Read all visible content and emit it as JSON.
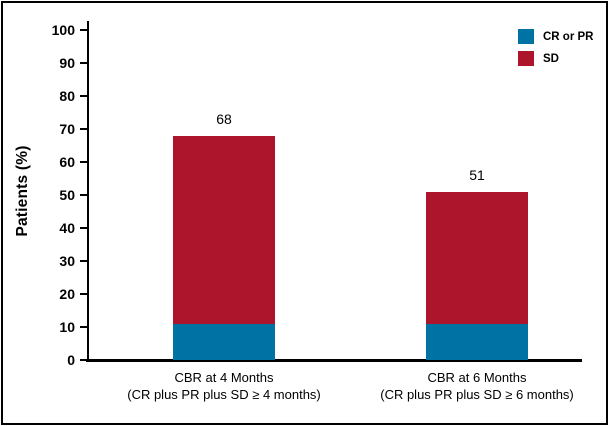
{
  "figure": {
    "frame_border_color": "#000000",
    "background": "#ffffff"
  },
  "chart_data": {
    "type": "bar",
    "stacked": true,
    "title": "",
    "xlabel": "",
    "ylabel": "Patients (%)",
    "ylim": [
      0,
      100
    ],
    "yticks": [
      0,
      10,
      20,
      30,
      40,
      50,
      60,
      70,
      80,
      90,
      100
    ],
    "grid": false,
    "legend_position": "top-right",
    "categories": [
      {
        "line1": "CBR at 4 Months",
        "line2": "(CR plus PR plus SD ≥ 4 months)"
      },
      {
        "line1": "CBR at 6 Months",
        "line2": "(CR plus PR plus SD ≥ 6 months)"
      }
    ],
    "series": [
      {
        "name": "CR or PR",
        "color": "#0072A3",
        "values": [
          11,
          11
        ]
      },
      {
        "name": "SD",
        "color": "#AC152C",
        "values": [
          57,
          40
        ]
      }
    ],
    "totals": [
      68,
      51
    ],
    "total_labels": [
      "68",
      "51"
    ],
    "legend": [
      {
        "label": "CR or PR",
        "color": "#0072A3",
        "swatch": "blue-square-icon"
      },
      {
        "label": "SD",
        "color": "#AC152C",
        "swatch": "red-square-icon"
      }
    ]
  }
}
